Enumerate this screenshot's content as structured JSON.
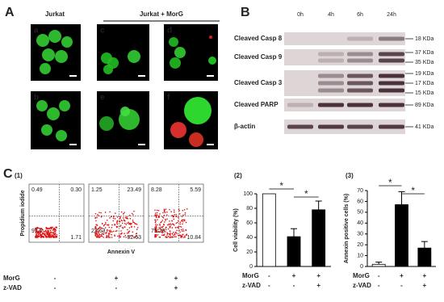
{
  "panel_a": {
    "label": "A",
    "groups": [
      "Jurkat",
      "Jurkat + MorG"
    ],
    "images": [
      "a",
      "b",
      "c",
      "d",
      "e",
      "f"
    ]
  },
  "panel_b": {
    "label": "B",
    "times": [
      "0h",
      "4h",
      "6h",
      "24h"
    ],
    "blots": [
      {
        "name": "Cleaved Casp 8",
        "sizes": [
          "18 KDa"
        ]
      },
      {
        "name": "Cleaved Casp 9",
        "sizes": [
          "37 KDa",
          "35 KDa"
        ]
      },
      {
        "name": "Cleaved Casp 3",
        "sizes": [
          "19 KDa",
          "17 KDa",
          "15 KDa"
        ]
      },
      {
        "name": "Cleaved  PARP",
        "sizes": [
          "89 KDa"
        ]
      },
      {
        "name": "β-actin",
        "sizes": [
          "41 KDa"
        ]
      }
    ]
  },
  "panel_c": {
    "label": "C",
    "flow": {
      "label": "(1)",
      "y_label": "Propidium iodide",
      "x_label": "Annexin V",
      "plots": [
        {
          "quadrants": [
            "0.49",
            "0.30",
            "97.5",
            "1.71"
          ]
        },
        {
          "quadrants": [
            "1.25",
            "23.49",
            "22.63",
            "52.63"
          ]
        },
        {
          "quadrants": [
            "8.28",
            "5.59",
            "75.29",
            "10.84"
          ]
        }
      ],
      "treatments": [
        {
          "name": "MorG",
          "signs": [
            "-",
            "+",
            "+"
          ]
        },
        {
          "name": "z-VAD",
          "signs": [
            "-",
            "-",
            "+"
          ]
        }
      ]
    },
    "charts": [
      {
        "type": "bar",
        "label": "(2)",
        "y_label": "Cell viability (%)",
        "values": [
          100,
          41,
          78
        ],
        "errors": [
          null,
          11,
          12
        ],
        "colors": [
          "#ffffff",
          "#000000",
          "#000000"
        ],
        "ylim": [
          0,
          100
        ],
        "yticks": [
          0,
          20,
          40,
          60,
          80,
          100
        ],
        "significance": [
          "*",
          "*"
        ],
        "treatments": [
          {
            "name": "MorG",
            "signs": [
              "-",
              "+",
              "+"
            ]
          },
          {
            "name": "z-VAD",
            "signs": [
              "-",
              "-",
              "+"
            ]
          }
        ]
      },
      {
        "type": "bar",
        "label": "(3)",
        "y_label": "Annexin positive cells (%)",
        "values": [
          2,
          57,
          17
        ],
        "errors": [
          2,
          12,
          6
        ],
        "colors": [
          "#ffffff",
          "#000000",
          "#000000"
        ],
        "ylim": [
          0,
          70
        ],
        "yticks": [
          0,
          10,
          20,
          30,
          40,
          50,
          60,
          70
        ],
        "significance": [
          "*",
          "*"
        ],
        "treatments": [
          {
            "name": "MorG",
            "signs": [
              "-",
              "+",
              "+"
            ]
          },
          {
            "name": "z-VAD",
            "signs": [
              "-",
              "-",
              "+"
            ]
          }
        ]
      }
    ]
  }
}
